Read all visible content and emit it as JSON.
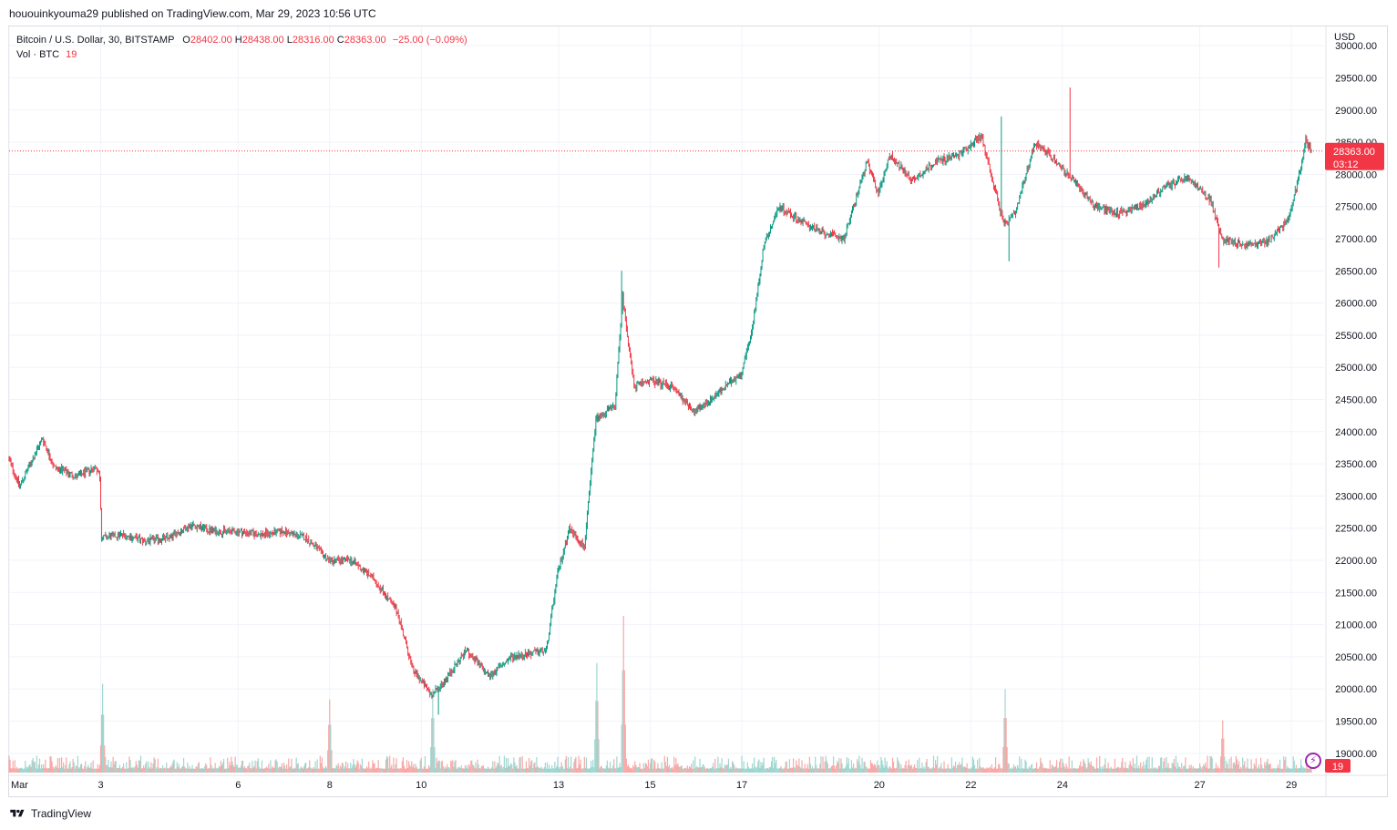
{
  "header": {
    "published_text": "hououinkyouma29 published on TradingView.com, Mar 29, 2023 10:56 UTC"
  },
  "legend": {
    "symbol": "Bitcoin / U.S. Dollar, 30, BITSTAMP",
    "o_label": "O",
    "o_value": "28402.00",
    "h_label": "H",
    "h_value": "28438.00",
    "l_label": "L",
    "l_value": "28316.00",
    "c_label": "C",
    "c_value": "28363.00",
    "change": "−25.00 (−0.09%)",
    "vol_label": "Vol · BTC",
    "vol_value": "19"
  },
  "footer": {
    "brand": "TradingView"
  },
  "colors": {
    "up": "#089981",
    "down": "#f23645",
    "vol_up": "#9fd6cf",
    "vol_down": "#f7a9a7",
    "grid": "#f0f3fa"
  },
  "icons": {
    "bolt": "lightning-icon",
    "logo": "tradingview-logo-icon"
  },
  "chart_data": {
    "type": "candlestick",
    "title": "Bitcoin / U.S. Dollar, 30, BITSTAMP",
    "currency_label": "USD",
    "ylim": [
      18700,
      30300
    ],
    "y_ticks": [
      19000,
      19500,
      20000,
      20500,
      21000,
      21500,
      22000,
      22500,
      23000,
      23500,
      24000,
      24500,
      25000,
      25500,
      26000,
      26500,
      27000,
      27500,
      28000,
      28500,
      29000,
      29500,
      30000
    ],
    "x_ticks": [
      {
        "day": 1,
        "label": "Mar"
      },
      {
        "day": 3,
        "label": "3"
      },
      {
        "day": 6,
        "label": "6"
      },
      {
        "day": 8,
        "label": "8"
      },
      {
        "day": 10,
        "label": "10"
      },
      {
        "day": 13,
        "label": "13"
      },
      {
        "day": 15,
        "label": "15"
      },
      {
        "day": 17,
        "label": "17"
      },
      {
        "day": 20,
        "label": "20"
      },
      {
        "day": 22,
        "label": "22"
      },
      {
        "day": 24,
        "label": "24"
      },
      {
        "day": 27,
        "label": "27"
      },
      {
        "day": 29,
        "label": "29"
      }
    ],
    "price_path": [
      {
        "d": "Mar 1 00:00",
        "p": 23600
      },
      {
        "d": "Mar 1 06:00",
        "p": 23150
      },
      {
        "d": "Mar 1 18:00",
        "p": 23900
      },
      {
        "d": "Mar 2 00:00",
        "p": 23450
      },
      {
        "d": "Mar 2 12:00",
        "p": 23300
      },
      {
        "d": "Mar 2 22:00",
        "p": 23450
      },
      {
        "d": "Mar 3 00:00",
        "p": 23300
      },
      {
        "d": "Mar 3 01:00",
        "p": 22350
      },
      {
        "d": "Mar 3 12:00",
        "p": 22400
      },
      {
        "d": "Mar 4 00:00",
        "p": 22300
      },
      {
        "d": "Mar 4 12:00",
        "p": 22350
      },
      {
        "d": "Mar 5 00:00",
        "p": 22550
      },
      {
        "d": "Mar 5 12:00",
        "p": 22450
      },
      {
        "d": "Mar 6 00:00",
        "p": 22450
      },
      {
        "d": "Mar 6 12:00",
        "p": 22400
      },
      {
        "d": "Mar 7 00:00",
        "p": 22450
      },
      {
        "d": "Mar 7 12:00",
        "p": 22350
      },
      {
        "d": "Mar 8 00:00",
        "p": 22000
      },
      {
        "d": "Mar 8 12:00",
        "p": 22000
      },
      {
        "d": "Mar 9 00:00",
        "p": 21700
      },
      {
        "d": "Mar 9 12:00",
        "p": 21200
      },
      {
        "d": "Mar 9 20:00",
        "p": 20300
      },
      {
        "d": "Mar 10 06:00",
        "p": 19900
      },
      {
        "d": "Mar 10 12:00",
        "p": 20100
      },
      {
        "d": "Mar 11 00:00",
        "p": 20600
      },
      {
        "d": "Mar 11 12:00",
        "p": 20200
      },
      {
        "d": "Mar 12 00:00",
        "p": 20500
      },
      {
        "d": "Mar 12 18:00",
        "p": 20600
      },
      {
        "d": "Mar 13 00:00",
        "p": 21800
      },
      {
        "d": "Mar 13 06:00",
        "p": 22500
      },
      {
        "d": "Mar 13 14:00",
        "p": 22200
      },
      {
        "d": "Mar 13 20:00",
        "p": 24200
      },
      {
        "d": "Mar 14 06:00",
        "p": 24400
      },
      {
        "d": "Mar 14 10:00",
        "p": 26100
      },
      {
        "d": "Mar 14 16:00",
        "p": 24700
      },
      {
        "d": "Mar 15 00:00",
        "p": 24800
      },
      {
        "d": "Mar 15 12:00",
        "p": 24700
      },
      {
        "d": "Mar 16 00:00",
        "p": 24300
      },
      {
        "d": "Mar 16 12:00",
        "p": 24600
      },
      {
        "d": "Mar 17 00:00",
        "p": 24900
      },
      {
        "d": "Mar 17 06:00",
        "p": 25600
      },
      {
        "d": "Mar 17 12:00",
        "p": 26900
      },
      {
        "d": "Mar 17 20:00",
        "p": 27500
      },
      {
        "d": "Mar 18 06:00",
        "p": 27300
      },
      {
        "d": "Mar 18 18:00",
        "p": 27100
      },
      {
        "d": "Mar 19 06:00",
        "p": 27000
      },
      {
        "d": "Mar 19 18:00",
        "p": 28200
      },
      {
        "d": "Mar 20 00:00",
        "p": 27700
      },
      {
        "d": "Mar 20 06:00",
        "p": 28300
      },
      {
        "d": "Mar 20 18:00",
        "p": 27900
      },
      {
        "d": "Mar 21 06:00",
        "p": 28200
      },
      {
        "d": "Mar 21 18:00",
        "p": 28300
      },
      {
        "d": "Mar 22 06:00",
        "p": 28600
      },
      {
        "d": "Mar 22 18:00",
        "p": 27200
      },
      {
        "d": "Mar 23 00:00",
        "p": 27400
      },
      {
        "d": "Mar 23 10:00",
        "p": 28500
      },
      {
        "d": "Mar 23 18:00",
        "p": 28300
      },
      {
        "d": "Mar 24 06:00",
        "p": 27900
      },
      {
        "d": "Mar 24 18:00",
        "p": 27500
      },
      {
        "d": "Mar 25 06:00",
        "p": 27400
      },
      {
        "d": "Mar 25 18:00",
        "p": 27500
      },
      {
        "d": "Mar 26 06:00",
        "p": 27800
      },
      {
        "d": "Mar 26 18:00",
        "p": 27950
      },
      {
        "d": "Mar 27 06:00",
        "p": 27600
      },
      {
        "d": "Mar 27 12:00",
        "p": 27000
      },
      {
        "d": "Mar 28 00:00",
        "p": 26900
      },
      {
        "d": "Mar 28 12:00",
        "p": 26950
      },
      {
        "d": "Mar 28 20:00",
        "p": 27200
      },
      {
        "d": "Mar 29 00:00",
        "p": 27400
      },
      {
        "d": "Mar 29 06:00",
        "p": 28200
      },
      {
        "d": "Mar 29 08:00",
        "p": 28550
      },
      {
        "d": "Mar 29 10:56",
        "p": 28363
      }
    ],
    "notable_wicks": [
      {
        "d": "Mar 24 04:00",
        "high": 29350
      },
      {
        "d": "Mar 22 16:00",
        "high": 28900
      },
      {
        "d": "Mar 22 20:00",
        "low": 26650
      },
      {
        "d": "Mar 27 10:00",
        "low": 26550
      },
      {
        "d": "Mar 10 09:00",
        "low": 19600
      },
      {
        "d": "Mar 14 09:00",
        "high": 26500
      }
    ],
    "last_price": "28363.00",
    "countdown": "03:12",
    "volume_last": "19",
    "volume_spikes": [
      {
        "d": "Mar 3 01:00",
        "v": 0.34
      },
      {
        "d": "Mar 8 00:00",
        "v": 0.28
      },
      {
        "d": "Mar 10 06:00",
        "v": 0.32
      },
      {
        "d": "Mar 13 20:00",
        "v": 0.42
      },
      {
        "d": "Mar 14 10:00",
        "v": 0.6
      },
      {
        "d": "Mar 22 18:00",
        "v": 0.32
      },
      {
        "d": "Mar 27 12:00",
        "v": 0.2
      }
    ]
  }
}
